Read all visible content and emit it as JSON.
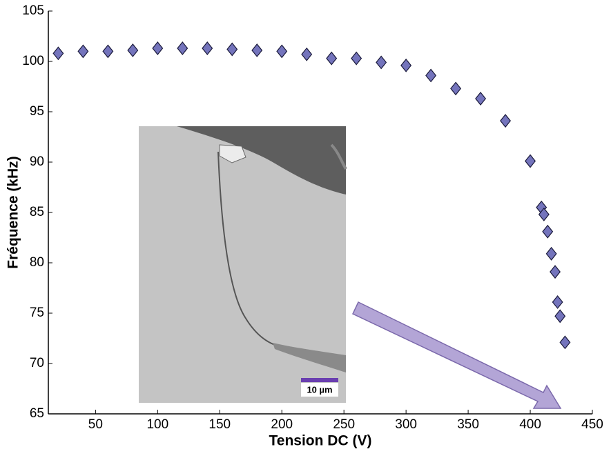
{
  "chart_data": {
    "type": "scatter",
    "xlabel": "Tension DC (V)",
    "ylabel": "Fréquence (kHz)",
    "series": [
      {
        "color": "#7474bc",
        "x": [
          20,
          40,
          60,
          80,
          100,
          120,
          140,
          160,
          180,
          200,
          220,
          240,
          260,
          280,
          300,
          320,
          340,
          360,
          380,
          400,
          409,
          411,
          414,
          417,
          420,
          422,
          424,
          428
        ],
        "values": [
          100.8,
          101.0,
          101.0,
          101.1,
          101.3,
          101.3,
          101.3,
          101.2,
          101.1,
          101.0,
          100.7,
          100.3,
          100.3,
          99.9,
          99.6,
          98.6,
          97.3,
          96.3,
          94.1,
          90.1,
          85.5,
          84.8,
          83.1,
          80.9,
          79.1,
          76.1,
          74.7,
          72.1
        ]
      }
    ],
    "xlim": [
      12,
      450
    ],
    "xticks": [
      50,
      100,
      150,
      200,
      250,
      300,
      350,
      400,
      450
    ],
    "ylim": [
      65,
      105
    ],
    "yticks": [
      65,
      70,
      75,
      80,
      85,
      90,
      95,
      100,
      105
    ]
  },
  "inset": {
    "scale_bar": "10 µm"
  }
}
